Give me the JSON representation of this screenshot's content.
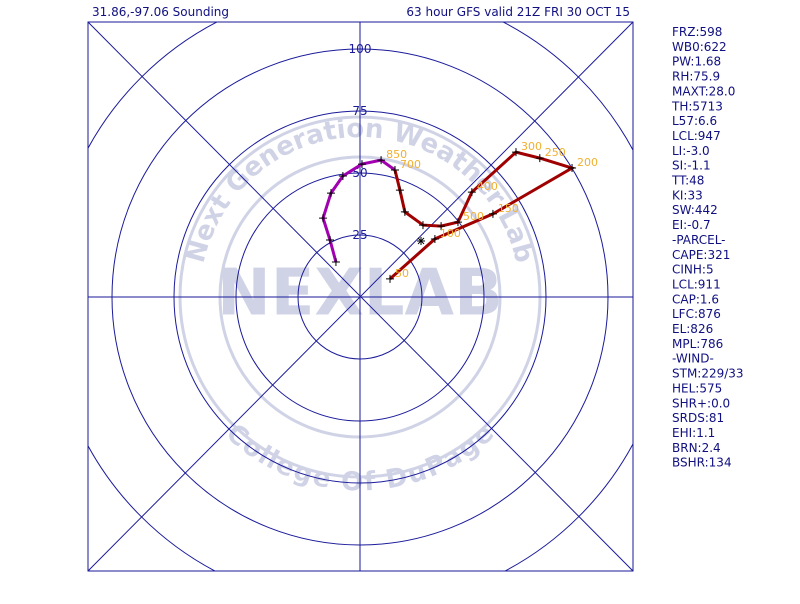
{
  "chart_data": {
    "type": "hodograph",
    "title_left": "31.86,-97.06 Sounding",
    "title_right": "63 hour GFS valid 21Z FRI 30 OCT 15",
    "rlim": [
      0,
      125
    ],
    "rticks": [
      25,
      50,
      75,
      100
    ],
    "series": [
      {
        "color": "#a000b0",
        "u": [
          -9.7,
          -12.1,
          -14.9,
          -11.7,
          -6.9,
          0.8,
          8.5,
          14.1
        ],
        "v": [
          14.1,
          23.0,
          31.8,
          41.9,
          48.8,
          53.6,
          55.2,
          51.2
        ],
        "labels": [
          null,
          null,
          null,
          null,
          null,
          null,
          850,
          null
        ]
      },
      {
        "color": "#a00000",
        "u": [
          14.1,
          16.1,
          18.1,
          25.4,
          32.7,
          39.5,
          45.1,
          62.9,
          72.5,
          85.5,
          53.6,
          30.2,
          12.1
        ],
        "v": [
          51.2,
          43.1,
          34.3,
          29.0,
          28.6,
          30.2,
          42.3,
          58.4,
          56.0,
          52.0,
          33.5,
          23.4,
          7.3
        ],
        "labels": [
          700,
          null,
          null,
          null,
          null,
          500,
          400,
          300,
          250,
          200,
          150,
          100,
          50
        ]
      }
    ],
    "storm_motion": {
      "u": 24.6,
      "v": 22.6
    },
    "watermark": [
      "Next Generation Weather Lab",
      "College Of DuPage",
      "NEXLAB"
    ],
    "parameters": [
      "FRZ:598",
      "WB0:622",
      "PW:1.68",
      "RH:75.9",
      "MAXT:28.0",
      "TH:5713",
      "L57:6.6",
      "LCL:947",
      "LI:-3.0",
      "SI:-1.1",
      "TT:48",
      "KI:33",
      "SW:442",
      "EI:-0.7",
      "-PARCEL-",
      "CAPE:321",
      "CINH:5",
      "LCL:911",
      "CAP:1.6",
      "LFC:876",
      "EL:826",
      "MPL:786",
      "-WIND-",
      "STM:229/33",
      "HEL:575",
      "SHR+:0.0",
      "SRDS:81",
      "EHI:1.1",
      "BRN:2.4",
      "BSHR:134"
    ]
  }
}
